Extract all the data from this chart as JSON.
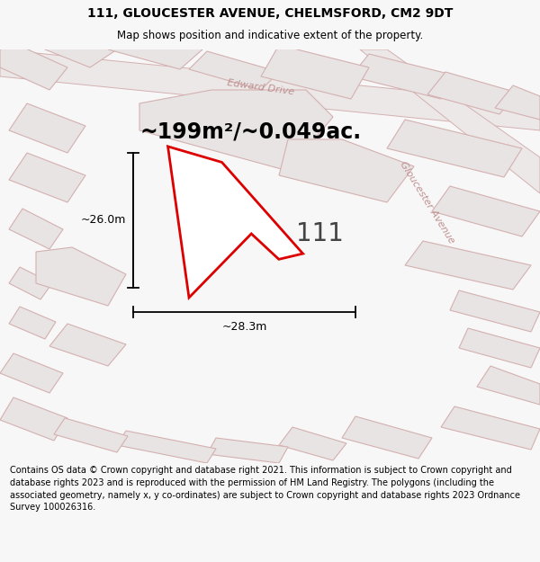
{
  "title_line1": "111, GLOUCESTER AVENUE, CHELMSFORD, CM2 9DT",
  "title_line2": "Map shows position and indicative extent of the property.",
  "area_text": "~199m²/~0.049ac.",
  "house_number": "111",
  "dim_width": "~28.3m",
  "dim_height": "~26.0m",
  "footer_text": "Contains OS data © Crown copyright and database right 2021. This information is subject to Crown copyright and database rights 2023 and is reproduced with the permission of HM Land Registry. The polygons (including the associated geometry, namely x, y co-ordinates) are subject to Crown copyright and database rights 2023 Ordnance Survey 100026316.",
  "bg_color": "#f7f7f7",
  "map_bg": "#f2f0f0",
  "plot_line_color": "#dd0000",
  "plot_fill_color": "#ffffff",
  "parcel_fill": "#e8e4e4",
  "parcel_edge": "#d4b0b0",
  "road_fill": "#ede8e8",
  "road_edge": "#d4b0b0",
  "street_label_color": "#c09090",
  "footer_bg": "#ffffff",
  "title_fontsize": 10,
  "subtitle_fontsize": 8.5,
  "area_fontsize": 17,
  "number_fontsize": 20,
  "dim_fontsize": 9,
  "footer_fontsize": 7
}
